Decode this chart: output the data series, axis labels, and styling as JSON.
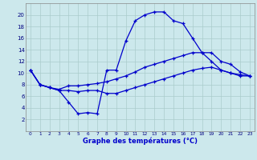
{
  "xlabel": "Graphe des températures (°C)",
  "background_color": "#cce8ec",
  "grid_color": "#aacccc",
  "line_color": "#0000cc",
  "max_y": [
    10.5,
    8.0,
    7.5,
    7.0,
    5.0,
    3.0,
    3.2,
    3.0,
    10.5,
    10.5,
    15.5,
    19.0,
    20.0,
    20.5,
    20.5,
    19.0,
    18.5,
    16.0,
    13.5,
    12.0,
    10.5,
    10.0,
    9.5,
    9.5
  ],
  "min_y": [
    10.5,
    8.0,
    7.5,
    7.0,
    7.0,
    6.8,
    7.0,
    7.0,
    6.5,
    6.5,
    7.0,
    7.5,
    8.0,
    8.5,
    9.0,
    9.5,
    10.0,
    10.5,
    10.8,
    11.0,
    10.5,
    10.0,
    9.7,
    9.5
  ],
  "avg_y": [
    10.5,
    8.0,
    7.5,
    7.2,
    7.8,
    7.8,
    8.0,
    8.2,
    8.5,
    9.0,
    9.5,
    10.2,
    11.0,
    11.5,
    12.0,
    12.5,
    13.0,
    13.5,
    13.5,
    13.5,
    12.0,
    11.5,
    10.2,
    9.5
  ],
  "x": [
    0,
    1,
    2,
    3,
    4,
    5,
    6,
    7,
    8,
    9,
    10,
    11,
    12,
    13,
    14,
    15,
    16,
    17,
    18,
    19,
    20,
    21,
    22,
    23
  ],
  "ylim": [
    0,
    22
  ],
  "xlim": [
    -0.5,
    23.5
  ],
  "yticks": [
    2,
    4,
    6,
    8,
    10,
    12,
    14,
    16,
    18,
    20
  ],
  "xtick_labels": [
    "0",
    "1",
    "2",
    "3",
    "4",
    "5",
    "6",
    "7",
    "8",
    "9",
    "10",
    "11",
    "12",
    "13",
    "14",
    "15",
    "16",
    "17",
    "18",
    "19",
    "20",
    "21",
    "22",
    "23"
  ],
  "ylabel_fontsize": 6.0,
  "tick_fontsize": 5.0,
  "xtick_fontsize": 4.2
}
